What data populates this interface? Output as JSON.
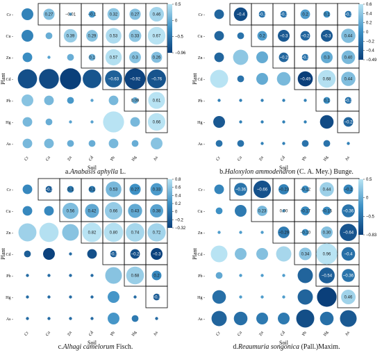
{
  "row_labels": [
    "Cr",
    "Cu",
    "Zn",
    "Cd",
    "Pb",
    "Hg",
    "As"
  ],
  "col_labels": [
    "Cr",
    "Cu",
    "Zn",
    "Cd",
    "Pb",
    "Hg",
    "As"
  ],
  "xlabel": "Soil",
  "ylabel": "Plant",
  "colors": {
    "low": "#0a3f7a",
    "mid": "#3b8fc4",
    "high": "#b8e3f3",
    "box": "#000000"
  },
  "panels": [
    {
      "caption_pre": "a.",
      "caption_italic": "Anabasis aphylla",
      "caption_post": " L.",
      "colorbar": {
        "ticks": [
          "0.5",
          "0",
          "−0.5",
          "−0.96"
        ]
      }
    },
    {
      "caption_pre": "b.",
      "caption_italic": "Haloxylon ammodendron",
      "caption_post": " (C. A. Mey.) Bunge.",
      "colorbar": {
        "ticks": [
          "0.6",
          "0.4",
          "0.2",
          "0",
          "−0.2",
          "−0.4",
          "−0.49"
        ]
      }
    },
    {
      "caption_pre": "c.",
      "caption_italic": "Alhagi camelorum",
      "caption_post": " Fisch.",
      "colorbar": {
        "ticks": [
          "0.8",
          "0.6",
          "0.4",
          "0.2",
          "0",
          "−0.2",
          "−0.32"
        ]
      }
    },
    {
      "caption_pre": "d.",
      "caption_italic": "Reaumuria songonica",
      "caption_post": " (Pall.)Maxim.",
      "colorbar": {
        "ticks": [
          "0.5",
          "0",
          "−0.5",
          "−0.83"
        ]
      }
    }
  ],
  "chart_data": [
    {
      "type": "heatmap",
      "title": "a.Anabasis aphylla L.",
      "xlabel": "Soil",
      "ylabel": "Plant",
      "rows": [
        "Cr",
        "Cu",
        "Zn",
        "Cd",
        "Pb",
        "Hg",
        "As"
      ],
      "cols": [
        "Cr",
        "Cu",
        "Zn",
        "Cd",
        "Pb",
        "Hg",
        "As"
      ],
      "color_range": [
        -0.96,
        0.6
      ],
      "values": [
        [
          -0.3,
          0.27,
          -0.01,
          -0.1,
          0.32,
          0.27,
          0.46
        ],
        [
          -0.3,
          0.1,
          0.39,
          0.29,
          0.53,
          0.33,
          0.67
        ],
        [
          -0.2,
          0.0,
          0.1,
          0.1,
          0.57,
          0.3,
          0.26
        ],
        [
          -0.8,
          -0.85,
          -0.96,
          -0.75,
          -0.63,
          -0.92,
          -0.76
        ],
        [
          0.3,
          0.2,
          -0.1,
          0.0,
          0.2,
          0.09,
          0.61
        ],
        [
          0.2,
          0.1,
          0.0,
          0.0,
          0.95,
          0.2,
          0.66
        ],
        [
          0.2,
          0.2,
          0.1,
          0.1,
          0.2,
          0.1,
          0.3
        ]
      ],
      "labels": [
        [
          "",
          "0.27",
          "−0.01",
          "−0.1",
          "0.32",
          "0.27",
          "0.46"
        ],
        [
          "",
          "",
          "0.39",
          "0.29",
          "0.53",
          "0.33",
          "0.67"
        ],
        [
          "",
          "",
          "",
          "0.1",
          "0.57",
          "0.3",
          "0.26"
        ],
        [
          "",
          "",
          "",
          "",
          "−0.63",
          "−0.92",
          "−0.76"
        ],
        [
          "",
          "",
          "",
          "",
          "",
          "0.09",
          "0.61"
        ],
        [
          "",
          "",
          "",
          "",
          "",
          "",
          "0.66"
        ],
        [
          "",
          "",
          "",
          "",
          "",
          "",
          ""
        ]
      ]
    },
    {
      "type": "heatmap",
      "title": "b.Haloxylon ammodendron (C. A. Mey.) Bunge.",
      "xlabel": "Soil",
      "ylabel": "Plant",
      "rows": [
        "Cr",
        "Cu",
        "Zn",
        "Cd",
        "Pb",
        "Hg",
        "As"
      ],
      "cols": [
        "Cr",
        "Cu",
        "Zn",
        "Cd",
        "Pb",
        "Hg",
        "As"
      ],
      "color_range": [
        -0.49,
        0.7
      ],
      "values": [
        [
          -0.2,
          -0.4,
          -0.1,
          -0.1,
          0.2,
          0.1,
          -0.1
        ],
        [
          -0.2,
          -0.1,
          0.2,
          -0.3,
          -0.2,
          -0.3,
          0.44
        ],
        [
          -0.2,
          0.5,
          0.3,
          -0.2,
          -0.1,
          0.3,
          0.4
        ],
        [
          0.7,
          -0.1,
          0.3,
          0.4,
          -0.49,
          0.68,
          0.44
        ],
        [
          0.0,
          0.0,
          0.0,
          0.0,
          0.0,
          0.1,
          -0.1
        ],
        [
          -0.3,
          0.0,
          0.0,
          0.0,
          0.0,
          -0.4,
          -0.2
        ],
        [
          -0.1,
          -0.1,
          0.0,
          0.0,
          -0.1,
          -0.1,
          0.0
        ]
      ],
      "labels": [
        [
          "",
          "−0.4",
          "−0.1",
          "−0.1",
          "0.2",
          "0.1",
          "−0.1"
        ],
        [
          "",
          "",
          "0.2",
          "−0.3",
          "−0.2",
          "−0.3",
          "0.44"
        ],
        [
          "",
          "",
          "",
          "−0.2",
          "−0.1",
          "0.3",
          "0.40"
        ],
        [
          "",
          "",
          "",
          "",
          "−0.49",
          "0.68",
          "0.44"
        ],
        [
          "",
          "",
          "",
          "",
          "",
          "0.1",
          "−0.1"
        ],
        [
          "",
          "",
          "",
          "",
          "",
          "",
          "−0.2"
        ],
        [
          "",
          "",
          "",
          "",
          "",
          "",
          ""
        ]
      ]
    },
    {
      "type": "heatmap",
      "title": "c.Alhagi camelorum Fisch.",
      "xlabel": "Soil",
      "ylabel": "Plant",
      "rows": [
        "Cr",
        "Cu",
        "Zn",
        "Cd",
        "Pb",
        "Hg",
        "As"
      ],
      "cols": [
        "Cr",
        "Cu",
        "Zn",
        "Cd",
        "Pb",
        "Hg",
        "As"
      ],
      "color_range": [
        -0.32,
        0.82
      ],
      "values": [
        [
          0.2,
          -0.1,
          0.1,
          0.1,
          0.53,
          0.27,
          0.33
        ],
        [
          0.2,
          0.2,
          0.56,
          0.42,
          0.66,
          0.43,
          0.38
        ],
        [
          0.7,
          0.8,
          0.6,
          0.82,
          0.8,
          0.74,
          0.72
        ],
        [
          -0.1,
          -0.3,
          0.0,
          -0.2,
          -0.1,
          -0.2,
          -0.3
        ],
        [
          0.0,
          0.0,
          0.0,
          0.0,
          0.6,
          0.68,
          0.2
        ],
        [
          0.0,
          0.0,
          0.0,
          0.0,
          0.3,
          0.0,
          -0.1
        ],
        [
          0.0,
          0.0,
          0.0,
          0.0,
          0.3,
          0.1,
          0.0
        ]
      ],
      "labels": [
        [
          "",
          "−0.1",
          "0.1",
          "0.1",
          "0.53",
          "0.27",
          "0.33"
        ],
        [
          "",
          "",
          "0.56",
          "0.42",
          "0.66",
          "0.43",
          "0.38"
        ],
        [
          "",
          "",
          "",
          "0.82",
          "0.80",
          "0.74",
          "0.72"
        ],
        [
          "",
          "",
          "",
          "",
          "−0.1",
          "−0.2",
          "−0.3"
        ],
        [
          "",
          "",
          "",
          "",
          "",
          "0.68",
          "0.2"
        ],
        [
          "",
          "",
          "",
          "",
          "",
          "",
          "−0.1"
        ],
        [
          "",
          "",
          "",
          "",
          "",
          "",
          ""
        ]
      ]
    },
    {
      "type": "heatmap",
      "title": "d.Reaumuria songonica (PalL)Maxim.",
      "xlabel": "Soil",
      "ylabel": "Plant",
      "rows": [
        "Cr",
        "Cu",
        "Zn",
        "Cd",
        "Pb",
        "Hg",
        "As"
      ],
      "cols": [
        "Cr",
        "Cu",
        "Zn",
        "Cd",
        "Pb",
        "Hg",
        "As"
      ],
      "color_range": [
        -0.83,
        0.6
      ],
      "values": [
        [
          -0.2,
          -0.36,
          -0.66,
          -0.23,
          -0.12,
          0.44,
          -0.2
        ],
        [
          -0.1,
          -0.3,
          0.23,
          0.0,
          -0.17,
          -0.15,
          -0.36
        ],
        [
          0.0,
          0.0,
          0.0,
          -0.29,
          -0.1,
          0.3,
          -0.64
        ],
        [
          0.6,
          0.3,
          0.3,
          0.5,
          0.34,
          0.96,
          -0.4
        ],
        [
          0.1,
          0.0,
          0.0,
          0.0,
          -0.5,
          -0.54,
          -0.36
        ],
        [
          -0.4,
          0.0,
          0.0,
          0.0,
          -0.5,
          -0.83,
          0.46
        ],
        [
          -0.5,
          -0.4,
          -0.3,
          -0.3,
          -0.7,
          -0.4,
          -0.6
        ]
      ],
      "labels": [
        [
          "",
          "−0.36",
          "−0.66",
          "−0.23",
          "−0.12",
          "0.44",
          "−0.2"
        ],
        [
          "",
          "",
          "0.23",
          "0.00",
          "−0.17",
          "−0.15",
          "−0.36"
        ],
        [
          "",
          "",
          "",
          "−0.29",
          "−0.10",
          "0.30",
          "−0.64"
        ],
        [
          "",
          "",
          "",
          "",
          "0.34",
          "0.96",
          "−0.4"
        ],
        [
          "",
          "",
          "",
          "",
          "",
          "−0.54",
          "−0.36"
        ],
        [
          "",
          "",
          "",
          "",
          "",
          "",
          "0.46"
        ],
        [
          "",
          "",
          "",
          "",
          "",
          "",
          ""
        ]
      ]
    }
  ]
}
